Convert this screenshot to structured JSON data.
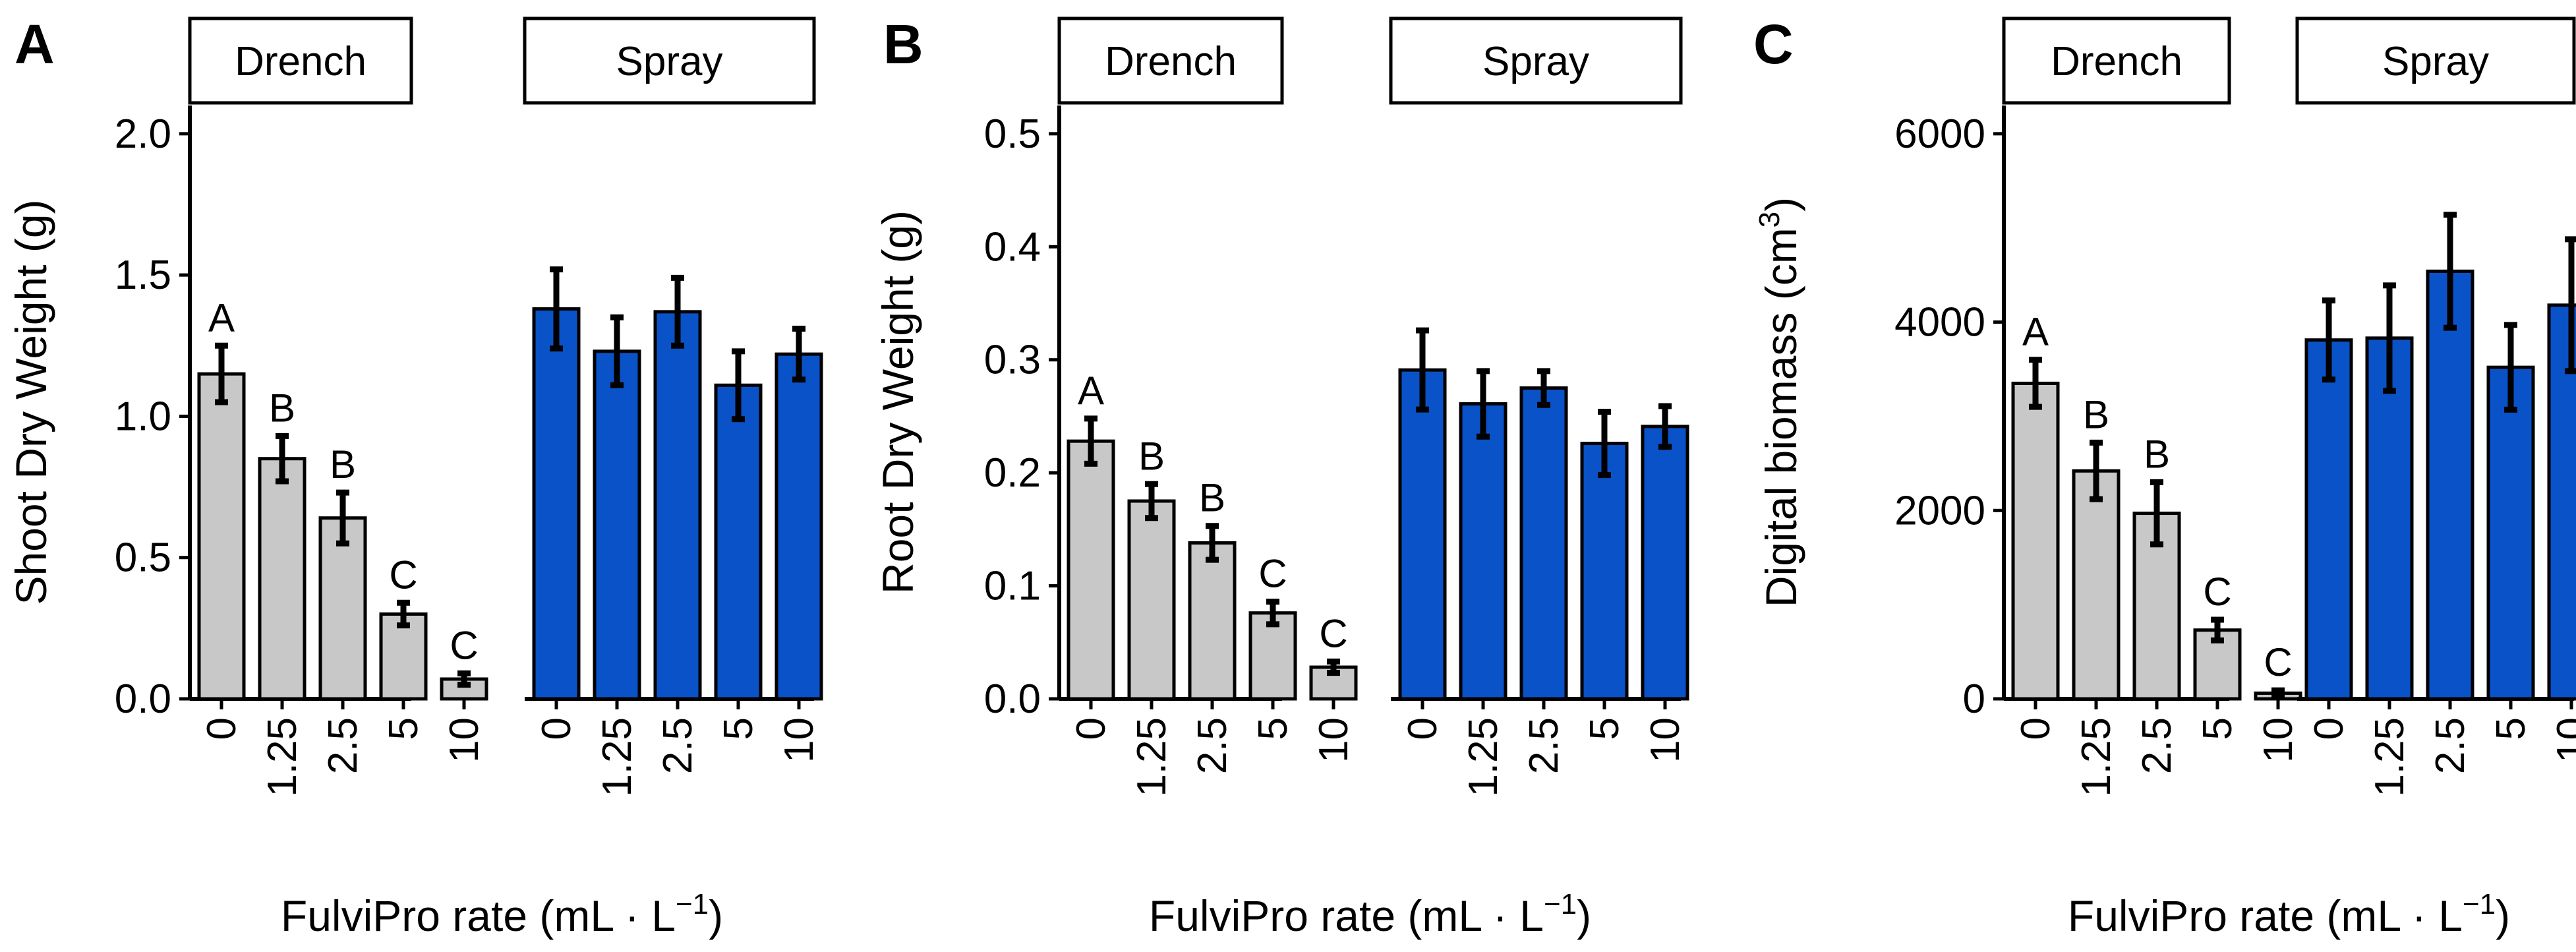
{
  "figure": {
    "x_axis_title": "FulviPro rate (mL · L",
    "x_axis_title_sup": "−1",
    "x_axis_title_end": ")",
    "facets": [
      "Drench",
      "Spray"
    ],
    "rates": [
      "0",
      "1.25",
      "2.5",
      "5",
      "10"
    ]
  },
  "colors": {
    "Drench": "#c8c8c8",
    "Spray": "#0a52c8",
    "stroke": "#000000"
  },
  "chart_data": [
    {
      "type": "bar",
      "panel": "A",
      "ylabel": "Shoot Dry Weight (g)",
      "ylabel_sup": "",
      "ylabel_end": "",
      "ylim": [
        0,
        2.1
      ],
      "yticks": [
        "0.0",
        "0.5",
        "1.0",
        "1.5",
        "2.0"
      ],
      "ytick_values": [
        0,
        0.5,
        1.0,
        1.5,
        2.0
      ],
      "categories": [
        "0",
        "1.25",
        "2.5",
        "5",
        "10"
      ],
      "series": [
        {
          "name": "Drench",
          "values": [
            1.15,
            0.85,
            0.64,
            0.3,
            0.07
          ],
          "errors": [
            0.1,
            0.08,
            0.09,
            0.04,
            0.02
          ],
          "letters": [
            "A",
            "B",
            "B",
            "C",
            "C"
          ]
        },
        {
          "name": "Spray",
          "values": [
            1.38,
            1.23,
            1.37,
            1.11,
            1.22
          ],
          "errors": [
            0.14,
            0.12,
            0.12,
            0.12,
            0.09
          ],
          "letters": [
            "",
            "",
            "",
            "",
            ""
          ]
        }
      ]
    },
    {
      "type": "bar",
      "panel": "B",
      "ylabel": "Root Dry Weight (g)",
      "ylabel_sup": "",
      "ylabel_end": "",
      "ylim": [
        0,
        0.525
      ],
      "yticks": [
        "0.0",
        "0.1",
        "0.2",
        "0.3",
        "0.4",
        "0.5"
      ],
      "ytick_values": [
        0,
        0.1,
        0.2,
        0.3,
        0.4,
        0.5
      ],
      "categories": [
        "0",
        "1.25",
        "2.5",
        "5",
        "10"
      ],
      "series": [
        {
          "name": "Drench",
          "values": [
            0.228,
            0.175,
            0.138,
            0.076,
            0.028
          ],
          "errors": [
            0.02,
            0.015,
            0.015,
            0.01,
            0.005
          ],
          "letters": [
            "A",
            "B",
            "B",
            "C",
            "C"
          ]
        },
        {
          "name": "Spray",
          "values": [
            0.291,
            0.261,
            0.275,
            0.226,
            0.241
          ],
          "errors": [
            0.035,
            0.029,
            0.015,
            0.028,
            0.018
          ],
          "letters": [
            "",
            "",
            "",
            "",
            ""
          ]
        }
      ]
    },
    {
      "type": "bar",
      "panel": "C",
      "ylabel": "Digital biomass (cm",
      "ylabel_sup": "3",
      "ylabel_end": ")",
      "ylim": [
        0,
        6300
      ],
      "yticks": [
        "0",
        "2000",
        "4000",
        "6000"
      ],
      "ytick_values": [
        0,
        2000,
        4000,
        6000
      ],
      "categories": [
        "0",
        "1.25",
        "2.5",
        "5",
        "10"
      ],
      "series": [
        {
          "name": "Drench",
          "values": [
            3350,
            2420,
            1970,
            730,
            60
          ],
          "errors": [
            250,
            300,
            330,
            110,
            30
          ],
          "letters": [
            "A",
            "B",
            "B",
            "C",
            "C"
          ]
        },
        {
          "name": "Spray",
          "values": [
            3810,
            3830,
            4540,
            3520,
            4180
          ],
          "errors": [
            420,
            560,
            600,
            450,
            700
          ],
          "letters": [
            "",
            "",
            "",
            "",
            ""
          ]
        }
      ]
    }
  ]
}
